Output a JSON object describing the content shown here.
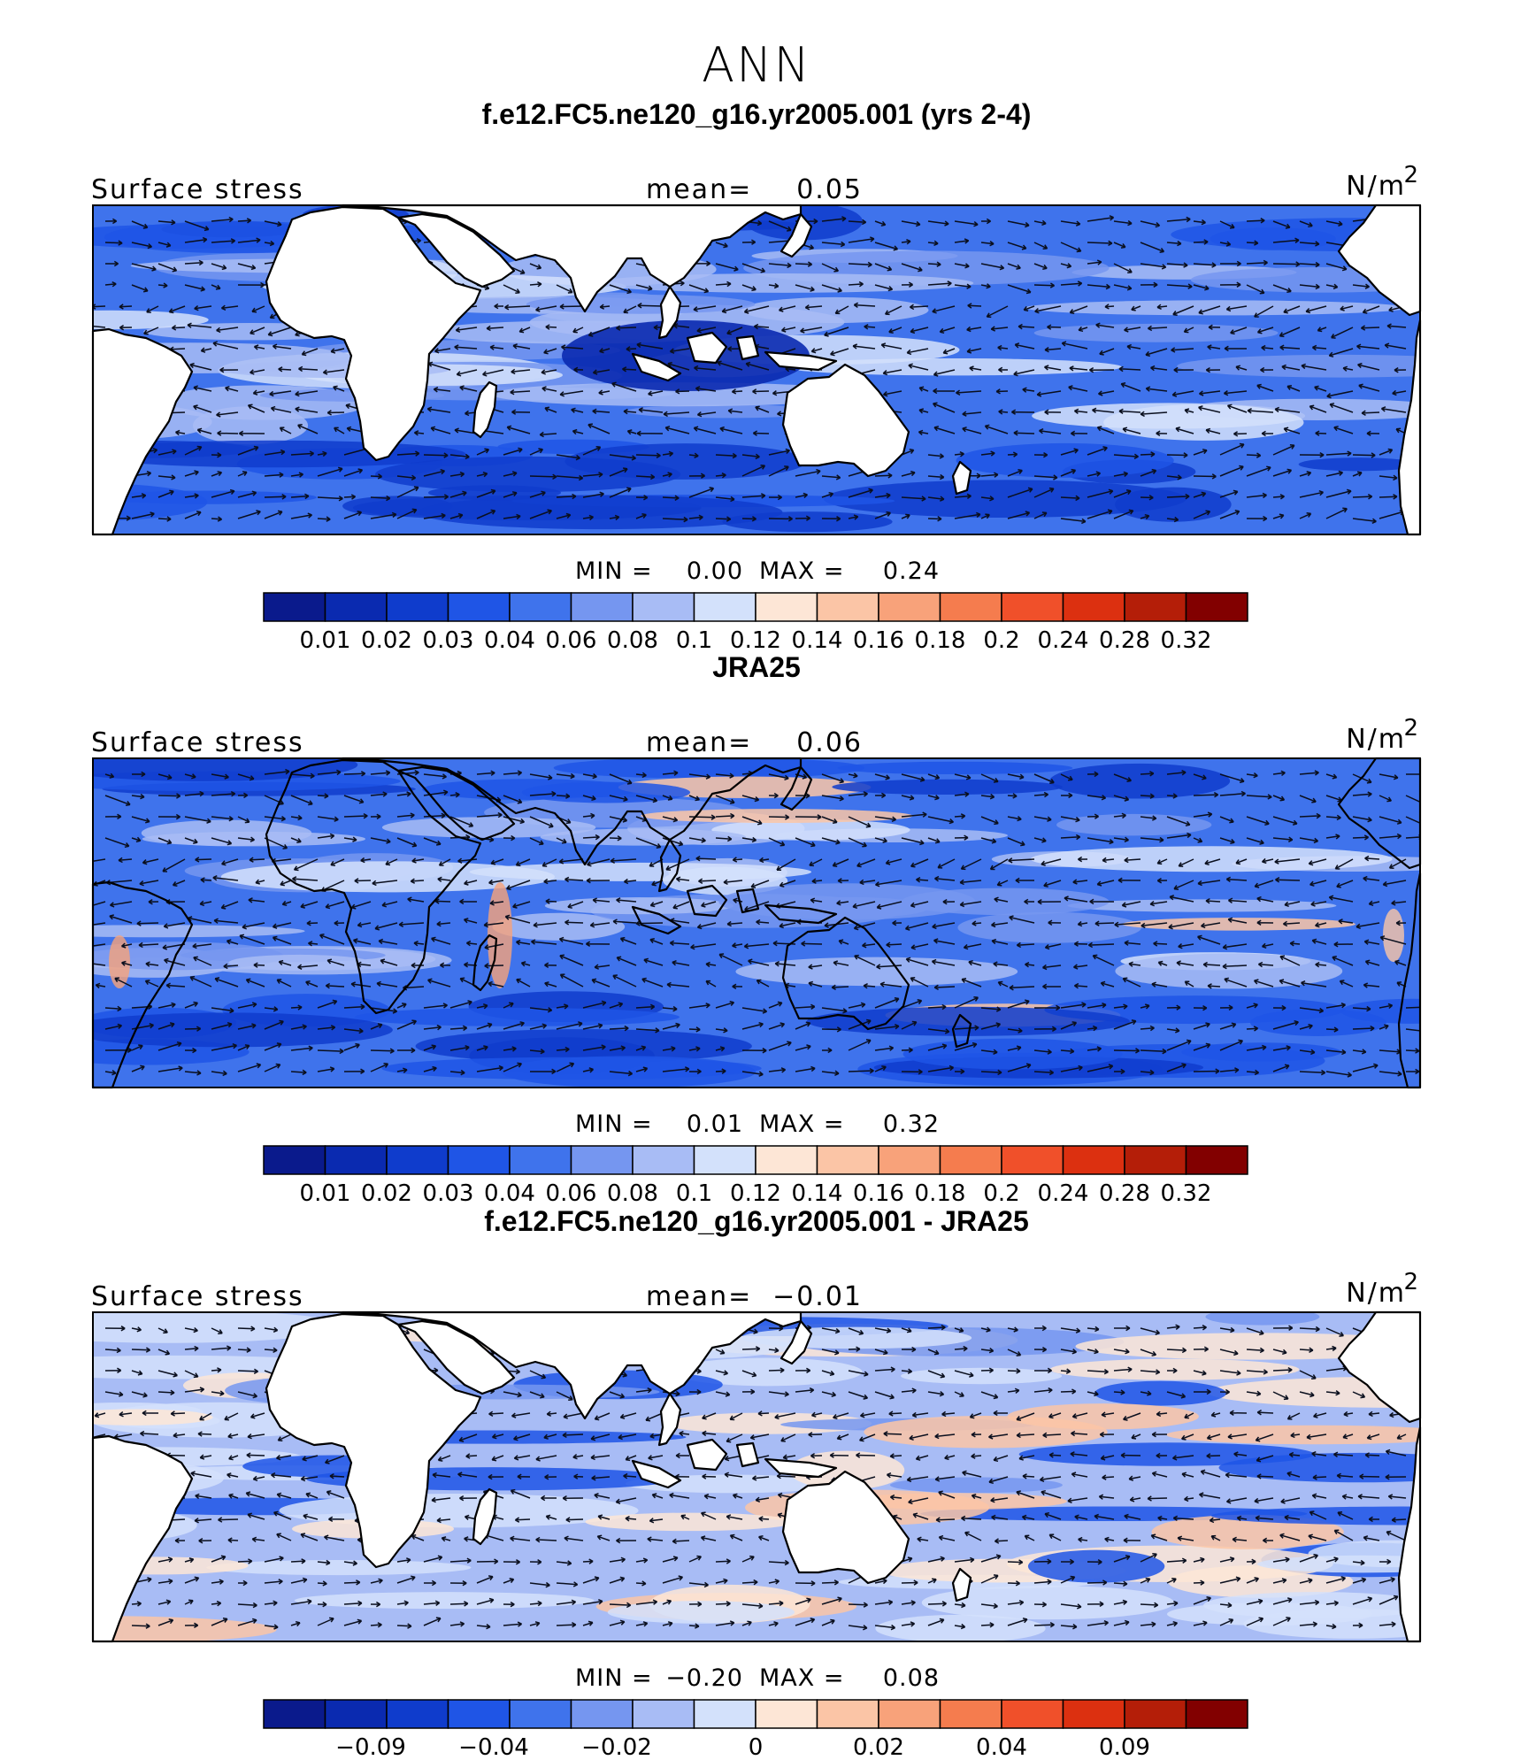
{
  "figure": {
    "season": "ANN",
    "units": "N/m",
    "units_sup": "2",
    "variable": "Surface stress",
    "mean_label": "mean=",
    "min_label": "MIN =",
    "max_label": "MAX ="
  },
  "panels": [
    {
      "id": "model",
      "title": "f.e12.FC5.ne120_g16.yr2005.001 (yrs 2-4)",
      "mean": "0.05",
      "min": "0.00",
      "max": "0.24",
      "land_masked": true
    },
    {
      "id": "obs",
      "title": "JRA25",
      "mean": "0.06",
      "min": "0.01",
      "max": "0.32",
      "land_masked": false
    },
    {
      "id": "diff",
      "title": "f.e12.FC5.ne120_g16.yr2005.001 - JRA25",
      "mean": "−0.01",
      "min": "−0.20",
      "max": "0.08",
      "land_masked": true
    }
  ],
  "colorbars": [
    {
      "colors": [
        "#0a1a8c",
        "#0a2ab0",
        "#0f3ccc",
        "#1f55e6",
        "#3f73ec",
        "#7596f0",
        "#a8bcf5",
        "#d3e1fb",
        "#fde6d6",
        "#fbc5a6",
        "#f8a27a",
        "#f57c4e",
        "#f0502a",
        "#dc3010",
        "#b41e08",
        "#820000"
      ],
      "labels": [
        "0.01",
        "0.02",
        "0.03",
        "0.04",
        "0.06",
        "0.08",
        "0.1",
        "0.12",
        "0.14",
        "0.16",
        "0.18",
        "0.2",
        "0.24",
        "0.28",
        "0.32"
      ]
    },
    {
      "colors": [
        "#0a1a8c",
        "#0a2ab0",
        "#0f3ccc",
        "#1f55e6",
        "#3f73ec",
        "#7596f0",
        "#a8bcf5",
        "#d3e1fb",
        "#fde6d6",
        "#fbc5a6",
        "#f8a27a",
        "#f57c4e",
        "#f0502a",
        "#dc3010",
        "#b41e08",
        "#820000"
      ],
      "labels": [
        "0.01",
        "0.02",
        "0.03",
        "0.04",
        "0.06",
        "0.08",
        "0.1",
        "0.12",
        "0.14",
        "0.16",
        "0.18",
        "0.2",
        "0.24",
        "0.28",
        "0.32"
      ]
    },
    {
      "colors": [
        "#0a1a8c",
        "#0a2ab0",
        "#0f3ccc",
        "#1f55e6",
        "#3f73ec",
        "#7596f0",
        "#a8bcf5",
        "#d3e1fb",
        "#fde6d6",
        "#fbc5a6",
        "#f8a27a",
        "#f57c4e",
        "#f0502a",
        "#dc3010",
        "#b41e08",
        "#820000"
      ],
      "labels": [
        "−0.09",
        "−0.04",
        "−0.02",
        "0",
        "0.02",
        "0.04",
        "0.09"
      ]
    }
  ]
}
